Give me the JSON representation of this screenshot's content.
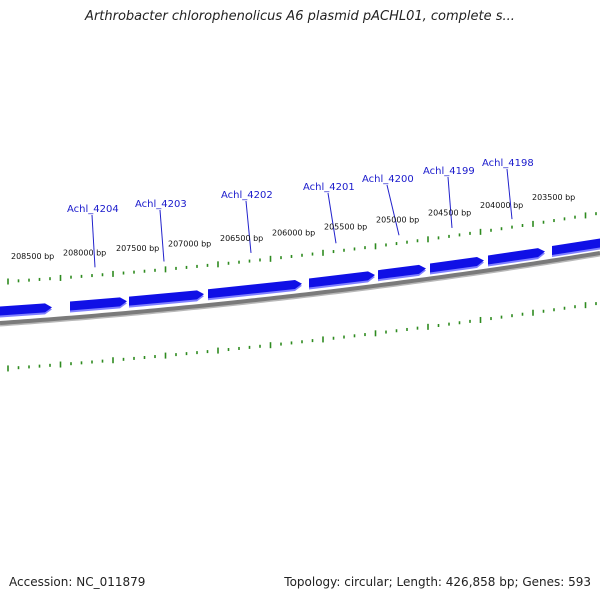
{
  "title": "Arthrobacter chlorophenolicus A6 plasmid pACHL01, complete s...",
  "accession": "Accession: NC_011879",
  "topology": "Topology: circular; Length: 426,858 bp; Genes: 593",
  "colors": {
    "gene_fill": "#1010e6",
    "gene_edge": "#8080ff",
    "backbone": "#7a7a7a",
    "tick": "#2e8b1f",
    "gene_label": "#1a1acc",
    "leader": "#2222cc"
  },
  "bp_labels": [
    "208500 bp",
    "208000 bp",
    "207500 bp",
    "207000 bp",
    "206500 bp",
    "206000 bp",
    "205500 bp",
    "205000 bp",
    "204500 bp",
    "204000 bp",
    "203500 bp"
  ],
  "genes": [
    "Achl_4204",
    "Achl_4203",
    "Achl_4202",
    "Achl_4201",
    "Achl_4200",
    "Achl_4199",
    "Achl_4198"
  ]
}
